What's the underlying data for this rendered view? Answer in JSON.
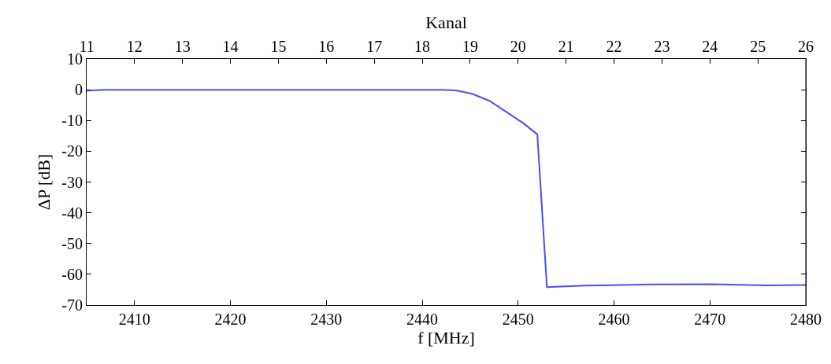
{
  "chart_data": {
    "type": "line",
    "xlabel": "f [MHz]",
    "ylabel": "ΔP [dB]",
    "x2label": "Kanal",
    "x": [
      2405,
      2407,
      2415,
      2425,
      2435,
      2442,
      2443.5,
      2445.2,
      2447,
      2449.3,
      2450.5,
      2452,
      2453,
      2457,
      2464,
      2470,
      2476,
      2480
    ],
    "series": [
      {
        "color": "#4c4cff",
        "values": [
          -0.3,
          0,
          0,
          0,
          0,
          0,
          -0.2,
          -1.3,
          -3.6,
          -8.3,
          -10.8,
          -14.5,
          -64.2,
          -63.7,
          -63.3,
          -63.2,
          -63.6,
          -63.5
        ]
      }
    ],
    "xlim": [
      2405,
      2480
    ],
    "xticks": [
      2410,
      2420,
      2430,
      2440,
      2450,
      2460,
      2470,
      2480
    ],
    "x2lim": [
      11,
      26
    ],
    "x2ticks": [
      11,
      12,
      13,
      14,
      15,
      16,
      17,
      18,
      19,
      20,
      21,
      22,
      23,
      24,
      25,
      26
    ],
    "ylim": [
      -70,
      10
    ],
    "yticks": [
      -70,
      -60,
      -50,
      -40,
      -30,
      -20,
      -10,
      0,
      10
    ],
    "line_style": "solid",
    "marker": "none"
  }
}
